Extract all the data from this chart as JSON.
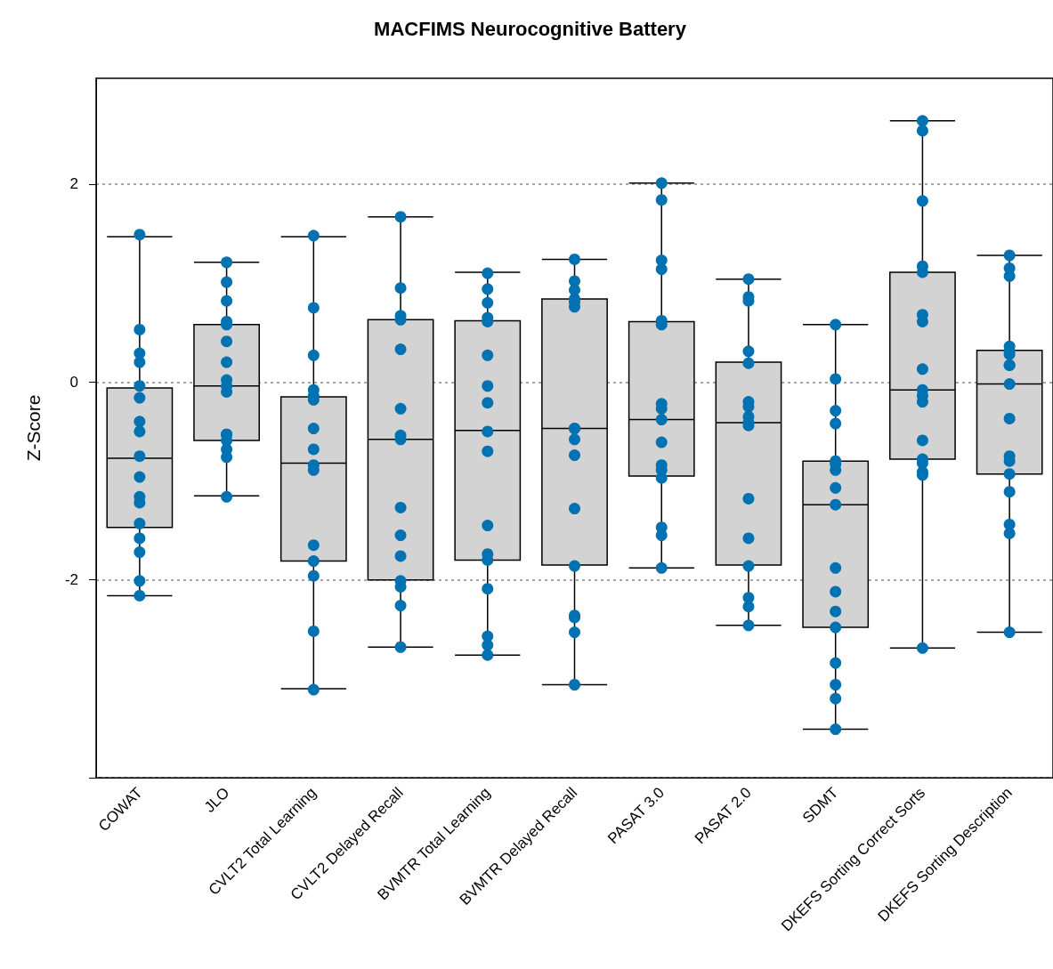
{
  "chart_data": {
    "type": "box",
    "title": "MACFIMS Neurocognitive Battery",
    "ylabel": "Z-Score",
    "color": "#d3d3d3",
    "categories": [
      "COWAT",
      "JLO",
      "CVLT2 Total Learning",
      "CVLT2 Delayed Recall",
      "BVMTR Total Learning",
      "BVMTR Delayed Recall",
      "PASAT 3.0",
      "PASAT 2.0",
      "SDMT",
      "DKEFS Sorting Correct Sorts",
      "DKEFS Sorting Description"
    ],
    "boxes": [
      {
        "low": -2.16,
        "q1": -1.47,
        "median": -0.77,
        "q3": -0.06,
        "high": 1.47
      },
      {
        "low": -1.15,
        "q1": -0.59,
        "median": -0.04,
        "q3": 0.58,
        "high": 1.21
      },
      {
        "low": -3.1,
        "q1": -1.81,
        "median": -0.82,
        "q3": -0.15,
        "high": 1.47
      },
      {
        "low": -2.68,
        "q1": -2.0,
        "median": -0.58,
        "q3": 0.63,
        "high": 1.67
      },
      {
        "low": -2.76,
        "q1": -1.8,
        "median": -0.49,
        "q3": 0.62,
        "high": 1.11
      },
      {
        "low": -3.06,
        "q1": -1.85,
        "median": -0.47,
        "q3": 0.84,
        "high": 1.24
      },
      {
        "low": -1.88,
        "q1": -0.95,
        "median": -0.38,
        "q3": 0.61,
        "high": 2.01
      },
      {
        "low": -2.46,
        "q1": -1.85,
        "median": -0.41,
        "q3": 0.2,
        "high": 1.04
      },
      {
        "low": -3.51,
        "q1": -2.48,
        "median": -1.24,
        "q3": -0.8,
        "high": 0.58
      },
      {
        "low": -2.69,
        "q1": -0.78,
        "median": -0.08,
        "q3": 1.11,
        "high": 2.64
      },
      {
        "low": -2.53,
        "q1": -0.93,
        "median": -0.02,
        "q3": 0.32,
        "high": 1.28
      }
    ],
    "series": [
      {
        "type": "scatter",
        "color": "#0072b2",
        "x": [
          "COWAT",
          "COWAT",
          "COWAT",
          "COWAT",
          "COWAT",
          "COWAT",
          "COWAT",
          "COWAT",
          "COWAT",
          "COWAT",
          "COWAT",
          "COWAT",
          "COWAT",
          "COWAT",
          "COWAT",
          "COWAT",
          "COWAT",
          "JLO",
          "JLO",
          "JLO",
          "JLO",
          "JLO",
          "JLO",
          "JLO",
          "JLO",
          "JLO",
          "JLO",
          "JLO",
          "JLO",
          "JLO",
          "JLO",
          "JLO",
          "JLO",
          "CVLT2 Total Learning",
          "CVLT2 Total Learning",
          "CVLT2 Total Learning",
          "CVLT2 Total Learning",
          "CVLT2 Total Learning",
          "CVLT2 Total Learning",
          "CVLT2 Total Learning",
          "CVLT2 Total Learning",
          "CVLT2 Total Learning",
          "CVLT2 Total Learning",
          "CVLT2 Total Learning",
          "CVLT2 Total Learning",
          "CVLT2 Total Learning",
          "CVLT2 Total Learning",
          "CVLT2 Total Learning",
          "CVLT2 Delayed Recall",
          "CVLT2 Delayed Recall",
          "CVLT2 Delayed Recall",
          "CVLT2 Delayed Recall",
          "CVLT2 Delayed Recall",
          "CVLT2 Delayed Recall",
          "CVLT2 Delayed Recall",
          "CVLT2 Delayed Recall",
          "CVLT2 Delayed Recall",
          "CVLT2 Delayed Recall",
          "CVLT2 Delayed Recall",
          "CVLT2 Delayed Recall",
          "CVLT2 Delayed Recall",
          "CVLT2 Delayed Recall",
          "CVLT2 Delayed Recall",
          "BVMTR Total Learning",
          "BVMTR Total Learning",
          "BVMTR Total Learning",
          "BVMTR Total Learning",
          "BVMTR Total Learning",
          "BVMTR Total Learning",
          "BVMTR Total Learning",
          "BVMTR Total Learning",
          "BVMTR Total Learning",
          "BVMTR Total Learning",
          "BVMTR Total Learning",
          "BVMTR Total Learning",
          "BVMTR Total Learning",
          "BVMTR Total Learning",
          "BVMTR Total Learning",
          "BVMTR Total Learning",
          "BVMTR Total Learning",
          "BVMTR Delayed Recall",
          "BVMTR Delayed Recall",
          "BVMTR Delayed Recall",
          "BVMTR Delayed Recall",
          "BVMTR Delayed Recall",
          "BVMTR Delayed Recall",
          "BVMTR Delayed Recall",
          "BVMTR Delayed Recall",
          "BVMTR Delayed Recall",
          "BVMTR Delayed Recall",
          "BVMTR Delayed Recall",
          "BVMTR Delayed Recall",
          "BVMTR Delayed Recall",
          "BVMTR Delayed Recall",
          "BVMTR Delayed Recall",
          "BVMTR Delayed Recall",
          "PASAT 3.0",
          "PASAT 3.0",
          "PASAT 3.0",
          "PASAT 3.0",
          "PASAT 3.0",
          "PASAT 3.0",
          "PASAT 3.0",
          "PASAT 3.0",
          "PASAT 3.0",
          "PASAT 3.0",
          "PASAT 3.0",
          "PASAT 3.0",
          "PASAT 3.0",
          "PASAT 3.0",
          "PASAT 3.0",
          "PASAT 3.0",
          "PASAT 2.0",
          "PASAT 2.0",
          "PASAT 2.0",
          "PASAT 2.0",
          "PASAT 2.0",
          "PASAT 2.0",
          "PASAT 2.0",
          "PASAT 2.0",
          "PASAT 2.0",
          "PASAT 2.0",
          "PASAT 2.0",
          "PASAT 2.0",
          "PASAT 2.0",
          "PASAT 2.0",
          "PASAT 2.0",
          "PASAT 2.0",
          "SDMT",
          "SDMT",
          "SDMT",
          "SDMT",
          "SDMT",
          "SDMT",
          "SDMT",
          "SDMT",
          "SDMT",
          "SDMT",
          "SDMT",
          "SDMT",
          "SDMT",
          "SDMT",
          "SDMT",
          "SDMT",
          "SDMT",
          "DKEFS Sorting Correct Sorts",
          "DKEFS Sorting Correct Sorts",
          "DKEFS Sorting Correct Sorts",
          "DKEFS Sorting Correct Sorts",
          "DKEFS Sorting Correct Sorts",
          "DKEFS Sorting Correct Sorts",
          "DKEFS Sorting Correct Sorts",
          "DKEFS Sorting Correct Sorts",
          "DKEFS Sorting Correct Sorts",
          "DKEFS Sorting Correct Sorts",
          "DKEFS Sorting Correct Sorts",
          "DKEFS Sorting Correct Sorts",
          "DKEFS Sorting Correct Sorts",
          "DKEFS Sorting Correct Sorts",
          "DKEFS Sorting Correct Sorts",
          "DKEFS Sorting Correct Sorts",
          "DKEFS Sorting Correct Sorts",
          "DKEFS Sorting Description",
          "DKEFS Sorting Description",
          "DKEFS Sorting Description",
          "DKEFS Sorting Description",
          "DKEFS Sorting Description",
          "DKEFS Sorting Description",
          "DKEFS Sorting Description",
          "DKEFS Sorting Description",
          "DKEFS Sorting Description",
          "DKEFS Sorting Description",
          "DKEFS Sorting Description",
          "DKEFS Sorting Description",
          "DKEFS Sorting Description",
          "DKEFS Sorting Description",
          "DKEFS Sorting Description",
          "DKEFS Sorting Description",
          "DKEFS Sorting Description"
        ],
        "values": [
          1.49,
          0.53,
          0.29,
          0.2,
          -0.04,
          -0.16,
          -0.4,
          -0.5,
          -0.75,
          -0.96,
          -1.16,
          -1.22,
          -1.43,
          -1.58,
          -1.72,
          -2.01,
          -2.16,
          1.21,
          1.01,
          0.82,
          0.61,
          0.58,
          0.41,
          0.2,
          0.02,
          -0.04,
          -0.1,
          -0.53,
          -0.53,
          -0.59,
          -0.68,
          -0.76,
          -1.16,
          1.48,
          0.75,
          0.27,
          -0.08,
          -0.14,
          -0.18,
          -0.47,
          -0.68,
          -0.84,
          -0.89,
          -1.65,
          -1.81,
          -1.96,
          -2.52,
          -3.11,
          1.67,
          0.95,
          0.67,
          0.63,
          0.33,
          -0.27,
          -0.54,
          -0.58,
          -1.27,
          -1.55,
          -1.76,
          -2.01,
          -2.07,
          -2.26,
          -2.68,
          1.1,
          0.94,
          0.8,
          0.65,
          0.61,
          0.27,
          -0.04,
          -0.21,
          -0.5,
          -0.7,
          -1.45,
          -1.74,
          -1.8,
          -2.09,
          -2.57,
          -2.66,
          -2.76,
          1.24,
          1.02,
          0.93,
          0.84,
          0.81,
          0.76,
          -0.47,
          -0.47,
          -0.58,
          -0.74,
          -1.28,
          -1.86,
          -2.36,
          -2.38,
          -2.53,
          -3.06,
          2.01,
          1.84,
          1.23,
          1.14,
          0.62,
          0.58,
          -0.22,
          -0.27,
          -0.38,
          -0.61,
          -0.84,
          -0.89,
          -0.97,
          -1.47,
          -1.55,
          -1.88,
          1.04,
          0.86,
          0.82,
          0.31,
          0.19,
          -0.2,
          -0.25,
          -0.35,
          -0.41,
          -0.44,
          -1.18,
          -1.58,
          -1.86,
          -2.18,
          -2.27,
          -2.46,
          0.58,
          0.03,
          -0.29,
          -0.42,
          -0.83,
          -0.8,
          -0.89,
          -1.07,
          -1.24,
          -1.88,
          -2.12,
          -2.32,
          -2.48,
          -2.84,
          -3.06,
          -3.2,
          -3.51,
          2.64,
          2.54,
          1.83,
          1.17,
          1.11,
          0.68,
          0.61,
          0.13,
          -0.08,
          -0.14,
          -0.2,
          -0.59,
          -0.78,
          -0.82,
          -0.91,
          -0.94,
          -2.69,
          1.28,
          1.15,
          1.07,
          0.36,
          0.31,
          0.28,
          0.17,
          0.17,
          -0.02,
          -0.37,
          -0.75,
          -0.8,
          -0.93,
          -1.11,
          -1.44,
          -1.53,
          -2.53
        ]
      }
    ],
    "ylim": [
      -4,
      3.07
    ],
    "yticks": [
      {
        "value": -4,
        "label": null
      },
      -2,
      0,
      2
    ],
    "grid": "y",
    "marker": "circle"
  }
}
